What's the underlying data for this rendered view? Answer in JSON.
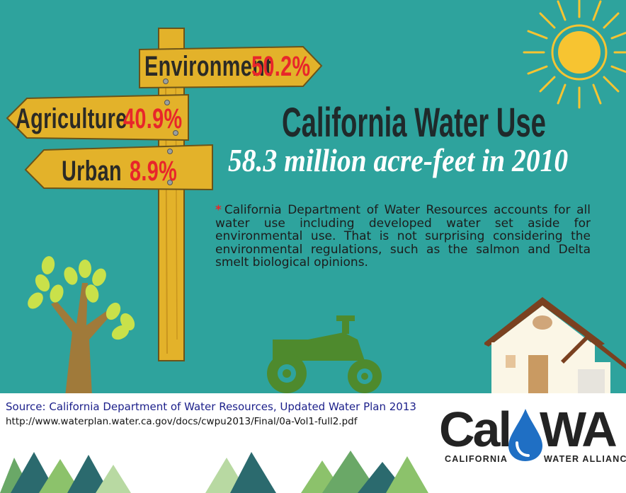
{
  "signs": [
    {
      "label": "Environment",
      "value": "50.2%"
    },
    {
      "label": "Agriculture",
      "value": "40.9%"
    },
    {
      "label": "Urban",
      "value": "8.9%"
    }
  ],
  "title": "California Water Use",
  "subtitle": "58.3 million acre-feet in 2010",
  "note": {
    "marker": "*",
    "text": "California Department of Water Resources accounts for all water use including developed water set aside for environmental use. That is not surprising considering the environmental regulations, such as the salmon and Delta smelt biological opinions."
  },
  "source": {
    "label": "Source: California Department of Water Resources, Updated Water Plan 2013",
    "url": "http://www.waterplan.water.ca.gov/docs/cwpu2013/Final/0a-Vol1-full2.pdf"
  },
  "logo": {
    "part1": "Cal",
    "part2": "WA",
    "tagline_left": "CALIFORNIA",
    "tagline_right": "WATER ALLIANCE"
  },
  "colors": {
    "background": "#2ea39d",
    "sign_wood": "#e3b22a",
    "value_red": "#e8262a",
    "sun": "#f7c431",
    "tractor": "#4e8a2d"
  },
  "icons": [
    "signpost",
    "sun-icon",
    "tree-icon",
    "tractor-icon",
    "house-icon",
    "water-drop-icon",
    "mountains"
  ]
}
